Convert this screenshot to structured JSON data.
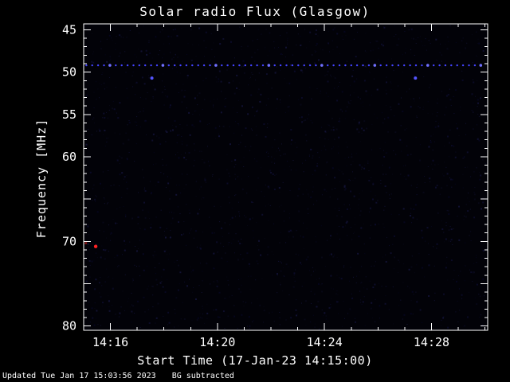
{
  "footer": {
    "updated": "Updated Tue Jan 17 15:03:56 2023",
    "note": "BG subtracted"
  },
  "chart_data": {
    "type": "scatter",
    "title": "Solar radio Flux (Glasgow)",
    "xlabel": "Start Time (17-Jan-23 14:15:00)",
    "ylabel": "Frequency [MHz]",
    "x_start_min": 0,
    "x_end_min": 15.1,
    "x_major_ticks": [
      {
        "min": 1,
        "label": "14:16"
      },
      {
        "min": 5,
        "label": "14:20"
      },
      {
        "min": 9,
        "label": "14:24"
      },
      {
        "min": 13,
        "label": "14:28"
      }
    ],
    "x_minor_step_min": 1,
    "y_min": 44.3,
    "y_max": 80.5,
    "y_inverted": true,
    "y_major_ticks": [
      {
        "value": 45,
        "label": "45"
      },
      {
        "value": 50,
        "label": "50"
      },
      {
        "value": 55,
        "label": "55"
      },
      {
        "value": 60,
        "label": "60"
      },
      {
        "value": 65,
        "label": ""
      },
      {
        "value": 70,
        "label": "70"
      },
      {
        "value": 75,
        "label": ""
      },
      {
        "value": 80,
        "label": "80"
      }
    ],
    "y_minor_step": 1,
    "dotted_line": {
      "y_mhz": 49.2,
      "color": "#4343ff",
      "bright_color": "#7070ff",
      "x_from_min": 0.1,
      "x_to_min": 15.02,
      "dot_spacing_min": 0.22
    },
    "points": [
      {
        "x_min": 2.55,
        "y_mhz": 50.7,
        "color": "#5555ff",
        "size": 2.0
      },
      {
        "x_min": 12.4,
        "y_mhz": 50.7,
        "color": "#5555ff",
        "size": 2.0
      },
      {
        "x_min": 0.45,
        "y_mhz": 70.6,
        "color": "#ff2222",
        "size": 2.2
      },
      {
        "x_min": 0.08,
        "y_mhz": 70.2,
        "color": "#7a1515",
        "size": 1.6
      }
    ],
    "plot_bg": "#020208",
    "axis_color": "#ffffff",
    "grid": false,
    "legend": null
  }
}
